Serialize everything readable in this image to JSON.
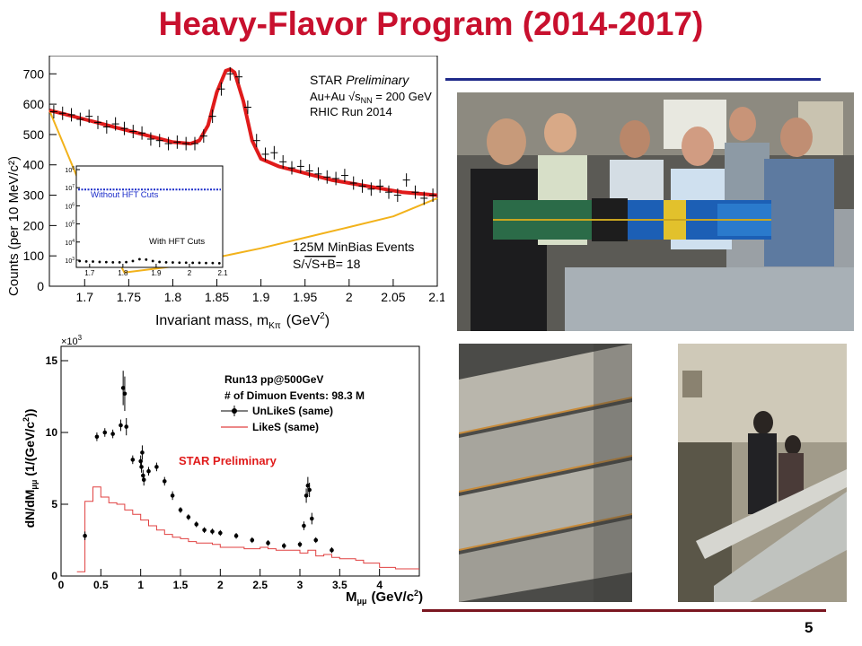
{
  "slide": {
    "title": "Heavy-Flavor Program (2014-2017)",
    "page_number": "5",
    "colors": {
      "title": "#c8102e",
      "top_rule": "#1f2a8a",
      "bottom_rule": "#7a1620"
    }
  },
  "chart_data": [
    {
      "type": "scatter",
      "panel": "d0-invariant-mass",
      "xlabel_main": "Invariant mass, m",
      "xlabel_sub": "Kπ",
      "xlabel_unit_open": "(GeV",
      "xlabel_unit_sup": "2",
      "xlabel_unit_close": ")",
      "ylabel": "Counts (per 10 MeV/c²)",
      "xlim": [
        1.66,
        2.1
      ],
      "ylim": [
        0,
        760
      ],
      "xticks": [
        1.7,
        1.75,
        1.8,
        1.85,
        1.9,
        1.95,
        2.0,
        2.05,
        2.1
      ],
      "xtick_labels": [
        "1.7",
        "1.75",
        "1.8",
        "1.85",
        "1.9",
        "1.95",
        "2",
        "2.05",
        "2.1"
      ],
      "yticks": [
        0,
        100,
        200,
        300,
        400,
        500,
        600,
        700
      ],
      "ytick_labels": [
        "0",
        "100",
        "200",
        "300",
        "400",
        "500",
        "600",
        "700"
      ],
      "annotations": {
        "l1": "STAR ",
        "l1_italic": "Preliminary",
        "l2_pre": "Au+Au √s",
        "l2_sub": "NN",
        "l2_post": " = 200 GeV",
        "l3": "RHIC Run 2014",
        "l4": "125M MinBias Events",
        "l5_pre": "S/",
        "l5_root": "√S+B",
        "l5_post": "= 18"
      },
      "series": [
        {
          "kind": "data",
          "color": "#000000",
          "x": [
            1.665,
            1.675,
            1.685,
            1.695,
            1.705,
            1.715,
            1.725,
            1.735,
            1.745,
            1.755,
            1.765,
            1.775,
            1.785,
            1.795,
            1.805,
            1.815,
            1.825,
            1.835,
            1.845,
            1.855,
            1.865,
            1.875,
            1.885,
            1.895,
            1.905,
            1.915,
            1.925,
            1.935,
            1.945,
            1.955,
            1.965,
            1.975,
            1.985,
            1.995,
            2.005,
            2.015,
            2.025,
            2.035,
            2.045,
            2.055,
            2.065,
            2.075,
            2.085,
            2.095
          ],
          "y": [
            575,
            570,
            565,
            550,
            560,
            540,
            525,
            535,
            520,
            510,
            505,
            485,
            480,
            470,
            475,
            470,
            470,
            495,
            560,
            650,
            700,
            690,
            590,
            480,
            435,
            440,
            410,
            390,
            395,
            380,
            370,
            360,
            355,
            365,
            340,
            330,
            320,
            330,
            310,
            300,
            350,
            310,
            290,
            300
          ],
          "yerr": 22
        },
        {
          "kind": "fit",
          "color": "#e01b1b",
          "x": [
            1.66,
            1.68,
            1.7,
            1.72,
            1.74,
            1.76,
            1.78,
            1.8,
            1.82,
            1.83,
            1.84,
            1.85,
            1.86,
            1.865,
            1.87,
            1.88,
            1.89,
            1.9,
            1.92,
            1.94,
            1.96,
            1.98,
            2.0,
            2.02,
            2.04,
            2.06,
            2.08,
            2.1
          ],
          "y": [
            580,
            565,
            550,
            535,
            520,
            505,
            490,
            475,
            470,
            480,
            530,
            640,
            710,
            715,
            705,
            610,
            480,
            420,
            395,
            380,
            365,
            350,
            340,
            330,
            320,
            310,
            305,
            300
          ]
        },
        {
          "kind": "background",
          "color": "#f2b21b",
          "x": [
            1.66,
            1.7,
            1.745,
            1.8,
            1.85,
            1.9,
            1.95,
            2.0,
            2.05,
            2.1
          ],
          "y": [
            580,
            300,
            45,
            65,
            95,
            125,
            160,
            195,
            230,
            290
          ]
        }
      ],
      "inset": {
        "xlim": [
          1.66,
          2.1
        ],
        "xticks": [
          1.7,
          1.8,
          1.9,
          2.0,
          2.1
        ],
        "xtick_labels": [
          "1.7",
          "1.8",
          "1.9",
          "2",
          "2.1"
        ],
        "yticks_exp": [
          "3",
          "4",
          "5",
          "6",
          "7",
          "8"
        ],
        "ytick_base": "10",
        "label_without": "Without HFT Cuts",
        "label_with": "With HFT Cuts",
        "without_log": 6.9,
        "with_x": [
          1.67,
          1.69,
          1.71,
          1.73,
          1.75,
          1.77,
          1.79,
          1.81,
          1.83,
          1.85,
          1.87,
          1.89,
          1.91,
          1.93,
          1.95,
          1.97,
          1.99,
          2.01,
          2.03,
          2.05,
          2.07,
          2.09
        ],
        "with_log": [
          2.95,
          2.93,
          2.92,
          2.9,
          2.89,
          2.88,
          2.88,
          2.89,
          2.95,
          3.05,
          3.03,
          2.95,
          2.9,
          2.88,
          2.87,
          2.86,
          2.86,
          2.85,
          2.85,
          2.84,
          2.84,
          2.83
        ],
        "colors": {
          "without": "#1a2bc9",
          "with": "#000000"
        }
      }
    },
    {
      "type": "line",
      "panel": "dimuon-mass",
      "exp_label_base": "×10",
      "exp_label_sup": "3",
      "ylabel_main": "dN/dM",
      "ylabel_sub": "μμ",
      "ylabel_unit_open": "(1/(GeV/c",
      "ylabel_unit_sup": "2",
      "ylabel_unit_close": "))",
      "xlabel_main": "M",
      "xlabel_sub": "μμ",
      "xlabel_unit_open": "(GeV/c",
      "xlabel_unit_sup": "2",
      "xlabel_unit_close": ")",
      "xlim": [
        0,
        4.5
      ],
      "ylim": [
        0,
        16
      ],
      "xticks": [
        0,
        0.5,
        1,
        1.5,
        2,
        2.5,
        3,
        3.5,
        4
      ],
      "xtick_labels": [
        "0",
        "0.5",
        "1",
        "1.5",
        "2",
        "2.5",
        "3",
        "3.5",
        "4"
      ],
      "yticks": [
        0,
        5,
        10,
        15
      ],
      "ytick_labels": [
        "0",
        "5",
        "10",
        "15"
      ],
      "legend": {
        "l1": "Run13 pp@500GeV",
        "l2": "# of Dimuon Events: 98.3 M",
        "unlike": "UnLikeS (same)",
        "like": "LikeS (same)"
      },
      "preliminary": "STAR Preliminary",
      "series": [
        {
          "kind": "unlike",
          "color": "#000000",
          "x": [
            0.3,
            0.45,
            0.55,
            0.65,
            0.75,
            0.78,
            0.8,
            0.82,
            0.9,
            1.0,
            1.01,
            1.02,
            1.03,
            1.04,
            1.1,
            1.2,
            1.3,
            1.4,
            1.5,
            1.6,
            1.7,
            1.8,
            1.9,
            2.0,
            2.2,
            2.4,
            2.6,
            2.8,
            3.0,
            3.05,
            3.08,
            3.1,
            3.12,
            3.15,
            3.2,
            3.4
          ],
          "y": [
            2.8,
            9.7,
            10,
            9.9,
            10.5,
            13.1,
            12.7,
            10.4,
            8.1,
            8.0,
            7.6,
            8.6,
            7.0,
            6.7,
            7.3,
            7.6,
            6.6,
            5.6,
            4.6,
            4.1,
            3.6,
            3.2,
            3.1,
            3.0,
            2.8,
            2.5,
            2.3,
            2.1,
            2.2,
            3.5,
            5.6,
            6.3,
            6.0,
            4.0,
            2.5,
            1.8
          ],
          "yerr": [
            0.3,
            0.3,
            0.3,
            0.3,
            0.4,
            1.2,
            1.2,
            0.6,
            0.3,
            0.4,
            0.4,
            0.5,
            0.4,
            0.4,
            0.3,
            0.3,
            0.3,
            0.3,
            0.2,
            0.2,
            0.2,
            0.2,
            0.2,
            0.2,
            0.2,
            0.2,
            0.2,
            0.2,
            0.2,
            0.3,
            0.5,
            0.6,
            0.5,
            0.4,
            0.2,
            0.2
          ]
        },
        {
          "kind": "like",
          "color": "#e04040",
          "x": [
            0.2,
            0.3,
            0.4,
            0.5,
            0.6,
            0.7,
            0.8,
            0.9,
            1.0,
            1.1,
            1.2,
            1.3,
            1.4,
            1.5,
            1.6,
            1.7,
            1.8,
            1.9,
            2.0,
            2.1,
            2.2,
            2.3,
            2.4,
            2.5,
            2.6,
            2.7,
            2.8,
            2.9,
            3.0,
            3.1,
            3.2,
            3.3,
            3.4,
            3.5,
            3.6,
            3.7,
            3.8,
            4.0,
            4.2,
            4.4
          ],
          "y": [
            0.3,
            5.2,
            6.2,
            5.5,
            5.1,
            5.0,
            4.6,
            4.3,
            3.9,
            3.5,
            3.2,
            2.9,
            2.7,
            2.6,
            2.4,
            2.3,
            2.3,
            2.2,
            2.0,
            2.0,
            2.0,
            1.9,
            1.9,
            2.0,
            1.9,
            1.8,
            1.8,
            1.8,
            1.6,
            1.8,
            1.4,
            1.5,
            1.3,
            1.2,
            1.2,
            1.1,
            0.9,
            0.6,
            0.5,
            0.5
          ]
        }
      ]
    }
  ]
}
